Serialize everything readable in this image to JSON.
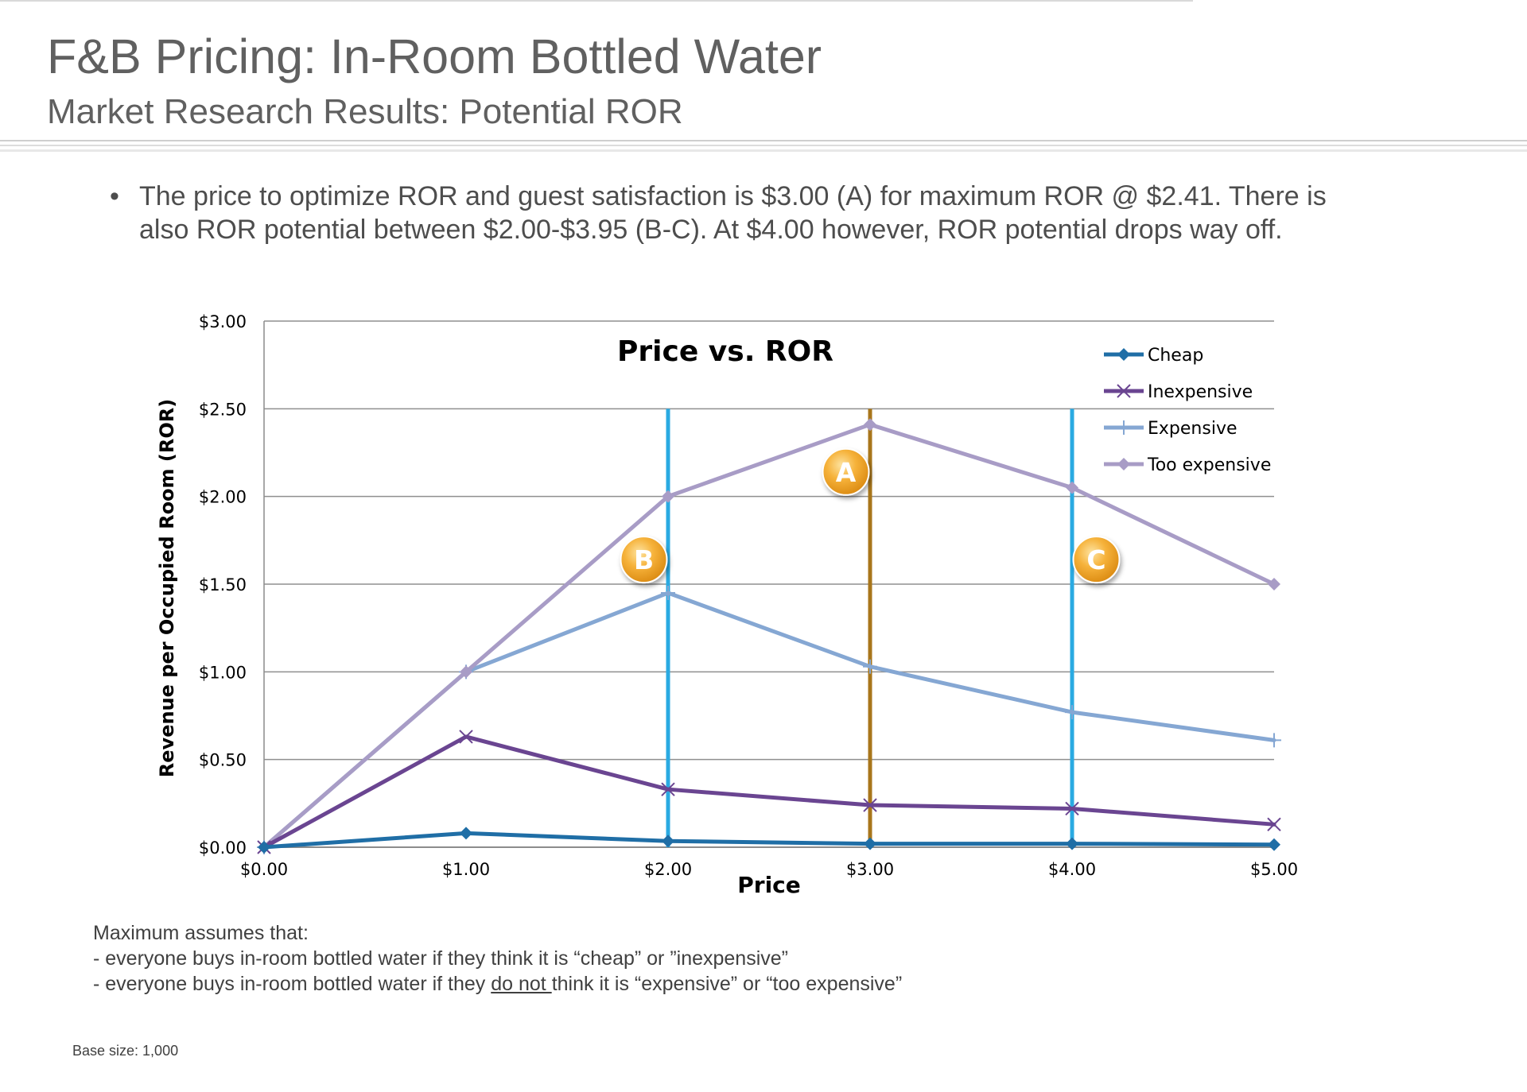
{
  "header": {
    "title": "F&B Pricing:  In-Room Bottled Water",
    "subtitle": "Market Research Results:  Potential ROR"
  },
  "bullet": {
    "symbol": "•",
    "line1": "The price to optimize ROR and guest satisfaction is $3.00 (A) for maximum ROR @ $2.41.   There is",
    "line2": "also ROR potential between  $2.00-$3.95 (B-C).  At $4.00 however, ROR potential drops way off."
  },
  "chart_data": {
    "type": "line",
    "title": "Price vs. ROR",
    "xlabel": "Price",
    "ylabel": "Revenue per Occupied Room (ROR)",
    "x": [
      0,
      1,
      2,
      3,
      4,
      5
    ],
    "x_tick_labels": [
      "$0.00",
      "$1.00",
      "$2.00",
      "$3.00",
      "$4.00",
      "$5.00"
    ],
    "y_tick_values": [
      0,
      0.5,
      1.0,
      1.5,
      2.0,
      2.5,
      3.0
    ],
    "y_tick_labels": [
      "$0.00",
      "$0.50",
      "$1.00",
      "$1.50",
      "$2.00",
      "$2.50",
      "$3.00"
    ],
    "xlim": [
      0,
      5
    ],
    "ylim": [
      0,
      3
    ],
    "grid": "horizontal",
    "legend_position": "top-right",
    "series": [
      {
        "name": "Cheap",
        "values": [
          0,
          0.08,
          0.035,
          0.02,
          0.02,
          0.015
        ],
        "color": "#1f6ea6",
        "marker": "diamond"
      },
      {
        "name": "Inexpensive",
        "values": [
          0,
          0.63,
          0.33,
          0.24,
          0.22,
          0.13
        ],
        "color": "#6a4591",
        "marker": "x"
      },
      {
        "name": "Expensive",
        "values": [
          0,
          1.0,
          1.45,
          1.03,
          0.77,
          0.61
        ],
        "color": "#85a7d3",
        "marker": "plus"
      },
      {
        "name": "Too expensive",
        "values": [
          0,
          1.0,
          2.0,
          2.41,
          2.05,
          1.5
        ],
        "color": "#a89cc6",
        "marker": "diamond"
      }
    ],
    "reference_lines": [
      {
        "x": 2.0,
        "color": "#2aaae2"
      },
      {
        "x": 3.0,
        "color": "#a8761b"
      },
      {
        "x": 4.0,
        "color": "#2aaae2"
      }
    ],
    "reference_line_top": 2.5,
    "annotations": [
      {
        "label": "A",
        "x": 2.88,
        "y": 2.14
      },
      {
        "label": "B",
        "x": 1.88,
        "y": 1.64
      },
      {
        "label": "C",
        "x": 4.12,
        "y": 1.64
      }
    ]
  },
  "notes": {
    "heading": "Maximum assumes that:",
    "line1": " - everyone buys in-room bottled water if they think it is “cheap” or ”inexpensive”",
    "line2_pre": " - everyone buys in-room bottled water if they ",
    "line2_underlined": "do not ",
    "line2_post": "think it is “expensive” or “too expensive”"
  },
  "footer": {
    "base_size": "Base size:  1,000"
  }
}
